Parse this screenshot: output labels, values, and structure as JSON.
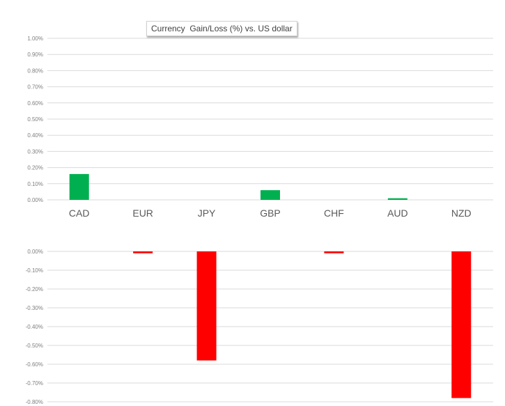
{
  "chart_data": [
    {
      "type": "bar",
      "title": "Currency  Gain/Loss (%) vs. US dollar",
      "categories": [
        "CAD",
        "EUR",
        "JPY",
        "GBP",
        "CHF",
        "AUD",
        "NZD"
      ],
      "values": [
        0.16,
        0,
        0,
        0.06,
        0,
        0.01,
        0
      ],
      "ylim": [
        0,
        1.0
      ],
      "yticks": [
        "1.00%",
        "0.90%",
        "0.80%",
        "0.70%",
        "0.60%",
        "0.50%",
        "0.40%",
        "0.30%",
        "0.20%",
        "0.10%",
        "0.00%"
      ],
      "bar_color": "#00b050",
      "grid": true
    },
    {
      "type": "bar",
      "categories": [
        "CAD",
        "EUR",
        "JPY",
        "GBP",
        "CHF",
        "AUD",
        "NZD"
      ],
      "values": [
        0,
        -0.01,
        -0.58,
        0,
        -0.01,
        0,
        -0.78
      ],
      "ylim": [
        -0.8,
        0
      ],
      "yticks": [
        "0.00%",
        "-0.10%",
        "-0.20%",
        "-0.30%",
        "-0.40%",
        "-0.50%",
        "-0.60%",
        "-0.70%",
        "-0.80%"
      ],
      "bar_color": "#ff0000",
      "grid": true
    }
  ]
}
